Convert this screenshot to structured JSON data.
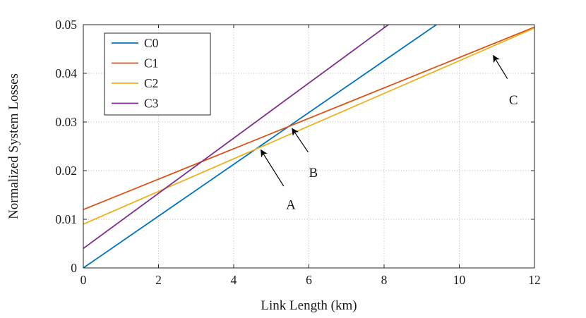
{
  "figure": {
    "background": "#ffffff",
    "axis_color": "#262626",
    "grid_color": "#b5b5b5",
    "annotation_color": "#000000"
  },
  "chart_data": {
    "type": "line",
    "title": "",
    "xlabel": "Link Length (km)",
    "ylabel": "Normalized System Losses",
    "xlim": [
      0,
      12
    ],
    "ylim": [
      0,
      0.05
    ],
    "xticks": [
      0,
      2,
      4,
      6,
      8,
      10,
      12
    ],
    "xtick_labels": [
      "0",
      "2",
      "4",
      "6",
      "8",
      "10",
      "12"
    ],
    "yticks": [
      0,
      0.01,
      0.02,
      0.03,
      0.04,
      0.05
    ],
    "ytick_labels": [
      "0",
      "0.01",
      "0.02",
      "0.03",
      "0.04",
      "0.05"
    ],
    "grid": true,
    "legend_position": "top-left",
    "series": [
      {
        "name": "C0",
        "color": "#0072BD",
        "points": [
          [
            0,
            0.0
          ],
          [
            9.43,
            0.0502
          ]
        ]
      },
      {
        "name": "C1",
        "color": "#D95319",
        "points": [
          [
            0,
            0.012
          ],
          [
            12,
            0.0495
          ]
        ]
      },
      {
        "name": "C2",
        "color": "#EDB120",
        "points": [
          [
            0,
            0.009
          ],
          [
            12,
            0.0493
          ]
        ]
      },
      {
        "name": "C3",
        "color": "#7E2F8E",
        "points": [
          [
            0,
            0.004
          ],
          [
            8.15,
            0.0502
          ]
        ]
      }
    ],
    "annotations": [
      {
        "label": "A",
        "arrow_from": [
          5.33,
          0.0168
        ],
        "arrow_to": [
          4.72,
          0.0243
        ],
        "label_pos": [
          5.52,
          0.013
        ]
      },
      {
        "label": "B",
        "arrow_from": [
          5.98,
          0.0238
        ],
        "arrow_to": [
          5.55,
          0.0287
        ],
        "label_pos": [
          6.12,
          0.0196
        ]
      },
      {
        "label": "C",
        "arrow_from": [
          11.28,
          0.0389
        ],
        "arrow_to": [
          10.9,
          0.0437
        ],
        "label_pos": [
          11.44,
          0.0345
        ]
      }
    ]
  }
}
